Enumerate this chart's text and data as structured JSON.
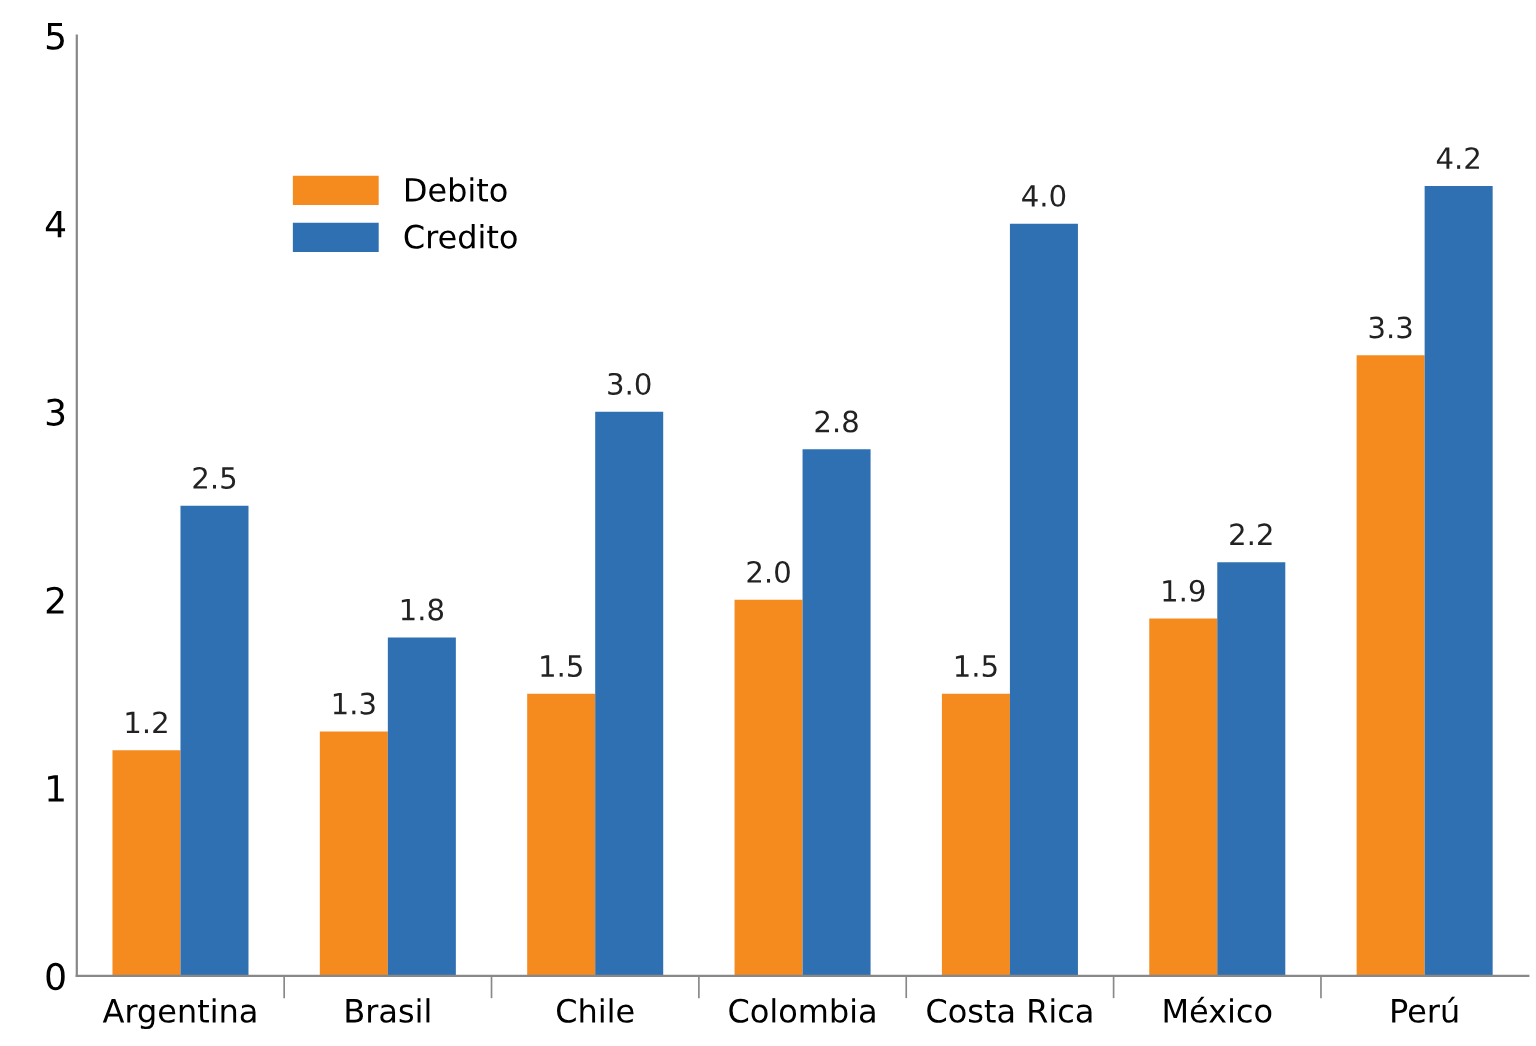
{
  "chart_data": {
    "type": "bar",
    "categories": [
      "Argentina",
      "Brasil",
      "Chile",
      "Colombia",
      "Costa Rica",
      "México",
      "Perú"
    ],
    "series": [
      {
        "name": "Debito",
        "color": "#f58b1f",
        "values": [
          1.2,
          1.3,
          1.5,
          2.0,
          1.5,
          1.9,
          3.3
        ],
        "value_labels": [
          "1.2",
          "1.3",
          "1.5",
          "2.0",
          "1.5",
          "1.9",
          "3.3"
        ]
      },
      {
        "name": "Credito",
        "color": "#2e70b1",
        "values": [
          2.5,
          1.8,
          3.0,
          2.8,
          4.0,
          2.2,
          4.2
        ],
        "value_labels": [
          "2.5",
          "1.8",
          "3.0",
          "2.8",
          "4.0",
          "2.2",
          "4.2"
        ]
      }
    ],
    "ylim": [
      0,
      5
    ],
    "yticks": [
      0,
      1,
      2,
      3,
      4,
      5
    ],
    "grid": false,
    "legend": "top left"
  }
}
